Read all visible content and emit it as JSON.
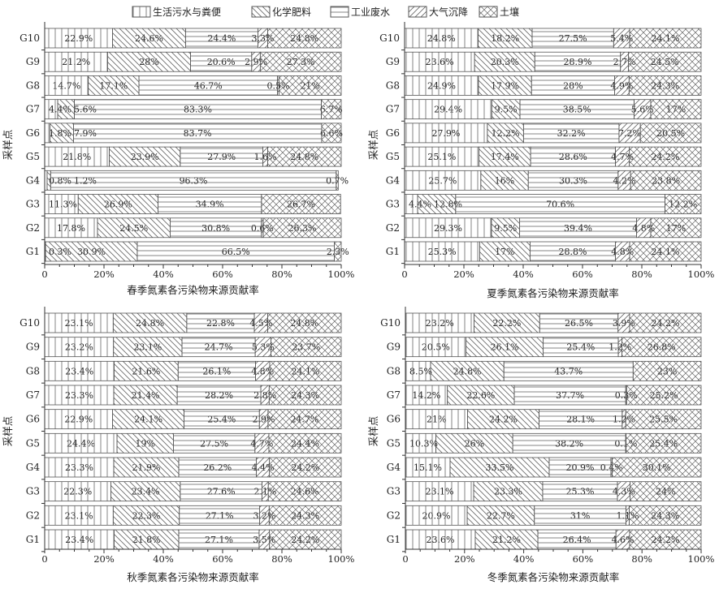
{
  "legend": [
    "生活污水与粪便",
    "化学肥料",
    "工业废水",
    "大气沉降",
    "土壤"
  ],
  "chart_data": [
    {
      "type": "bar",
      "orientation": "horizontal",
      "stacked": true,
      "title": "春季氮素各污染物来源贡献率",
      "ylabel": "采样点",
      "categories": [
        "G1",
        "G2",
        "G3",
        "G4",
        "G5",
        "G6",
        "G7",
        "G8",
        "G9",
        "G10"
      ],
      "xlim": [
        0,
        100
      ],
      "xticks": [
        "0",
        "20%",
        "40%",
        "60%",
        "80%",
        "100%"
      ],
      "series": [
        {
          "name": "生活污水与粪便",
          "values": [
            0.3,
            17.8,
            11.3,
            0.8,
            21.8,
            1.8,
            4.4,
            14.7,
            21.2,
            22.9
          ]
        },
        {
          "name": "化学肥料",
          "values": [
            30.9,
            24.5,
            26.9,
            1.2,
            23.9,
            7.9,
            5.6,
            17.1,
            28,
            24.6
          ]
        },
        {
          "name": "工业废水",
          "values": [
            66.5,
            30.8,
            34.9,
            96.3,
            27.9,
            83.7,
            83.3,
            46.7,
            20.6,
            24.4
          ]
        },
        {
          "name": "大气沉降",
          "values": [
            null,
            0.6,
            null,
            null,
            1.6,
            null,
            null,
            0.5,
            2.9,
            3.3
          ]
        },
        {
          "name": "土壤",
          "values": [
            2.3,
            26.3,
            26.7,
            0.7,
            24.8,
            6.6,
            6.7,
            21,
            27.3,
            24.8
          ]
        }
      ]
    },
    {
      "type": "bar",
      "orientation": "horizontal",
      "stacked": true,
      "title": "夏季氮素各污染物来源贡献率",
      "ylabel": "采样点",
      "categories": [
        "G1",
        "G2",
        "G3",
        "G4",
        "G5",
        "G6",
        "G7",
        "G8",
        "G9",
        "G10"
      ],
      "xlim": [
        0,
        100
      ],
      "xticks": [
        "0",
        "20%",
        "40%",
        "60%",
        "80%",
        "100%"
      ],
      "series": [
        {
          "name": "生活污水与粪便",
          "values": [
            25.3,
            29.3,
            4.4,
            25.7,
            25.1,
            27.9,
            29.4,
            24.9,
            23.6,
            24.8
          ]
        },
        {
          "name": "化学肥料",
          "values": [
            17,
            9.5,
            12.8,
            16,
            17.4,
            12.2,
            9.5,
            17.9,
            20.3,
            18.2
          ]
        },
        {
          "name": "工业废水",
          "values": [
            28.8,
            39.4,
            70.6,
            30.3,
            28.6,
            32.2,
            38.5,
            28,
            28.9,
            27.5
          ]
        },
        {
          "name": "大气沉降",
          "values": [
            4.8,
            4.8,
            null,
            4.2,
            4.7,
            7.2,
            5.6,
            4.9,
            2.7,
            5.4
          ]
        },
        {
          "name": "土壤",
          "values": [
            24.1,
            17,
            12.2,
            23.8,
            24.2,
            20.5,
            17,
            24.3,
            24.5,
            24.1
          ]
        }
      ]
    },
    {
      "type": "bar",
      "orientation": "horizontal",
      "stacked": true,
      "title": "秋季氮素各污染物来源贡献率",
      "ylabel": "采样点",
      "categories": [
        "G1",
        "G2",
        "G3",
        "G4",
        "G5",
        "G6",
        "G7",
        "G8",
        "G9",
        "G10"
      ],
      "xlim": [
        0,
        100
      ],
      "xticks": [
        "0",
        "20%",
        "40%",
        "60%",
        "80%",
        "100%"
      ],
      "series": [
        {
          "name": "生活污水与粪便",
          "values": [
            23.4,
            23.1,
            22.3,
            23.3,
            24.4,
            22.9,
            23.3,
            23.4,
            23.2,
            23.1
          ]
        },
        {
          "name": "化学肥料",
          "values": [
            21.8,
            22.3,
            23.4,
            21.9,
            19,
            24.1,
            21.4,
            21.6,
            23.1,
            24.8
          ]
        },
        {
          "name": "工业废水",
          "values": [
            27.1,
            27.1,
            27.6,
            26.2,
            27.5,
            25.4,
            28.2,
            26.1,
            24.7,
            22.8
          ]
        },
        {
          "name": "大气沉降",
          "values": [
            3.5,
            3.2,
            2.1,
            4.4,
            4.7,
            2.9,
            2.8,
            4.8,
            5.3,
            4.5
          ]
        },
        {
          "name": "土壤",
          "values": [
            24.2,
            24.3,
            24.6,
            24.2,
            24.4,
            24.7,
            24.3,
            24.1,
            23.7,
            24.8
          ]
        }
      ]
    },
    {
      "type": "bar",
      "orientation": "horizontal",
      "stacked": true,
      "title": "冬季氮素各污染物来源贡献率",
      "ylabel": "采样点",
      "categories": [
        "G1",
        "G2",
        "G3",
        "G4",
        "G5",
        "G6",
        "G7",
        "G8",
        "G9",
        "G10"
      ],
      "xlim": [
        0,
        100
      ],
      "xticks": [
        "0",
        "20%",
        "40%",
        "60%",
        "80%",
        "100%"
      ],
      "series": [
        {
          "name": "生活污水与粪便",
          "values": [
            23.6,
            20.9,
            23.1,
            15.1,
            10.3,
            21,
            14.2,
            8.5,
            20.5,
            23.2
          ]
        },
        {
          "name": "化学肥料",
          "values": [
            21.2,
            22.7,
            23.3,
            33.5,
            26,
            24.2,
            22.6,
            24.8,
            26.1,
            22.2
          ]
        },
        {
          "name": "工业废水",
          "values": [
            26.4,
            31,
            25.3,
            20.9,
            38.2,
            28.1,
            37.7,
            43.7,
            25.4,
            26.5
          ]
        },
        {
          "name": "大气沉降",
          "values": [
            4.6,
            1.1,
            4.3,
            0.4,
            0.1,
            1.2,
            0.3,
            null,
            1.2,
            3.9
          ]
        },
        {
          "name": "土壤",
          "values": [
            24.2,
            24.3,
            24,
            30.1,
            25.4,
            25.5,
            25.2,
            23,
            26.8,
            24.2
          ]
        }
      ]
    }
  ],
  "patterns": [
    "vertical-lines",
    "backslash-hatch",
    "horizontal-lines",
    "slash-hatch",
    "cross-hatch"
  ],
  "colors": {
    "ink": "#555555",
    "background": "#ffffff"
  }
}
